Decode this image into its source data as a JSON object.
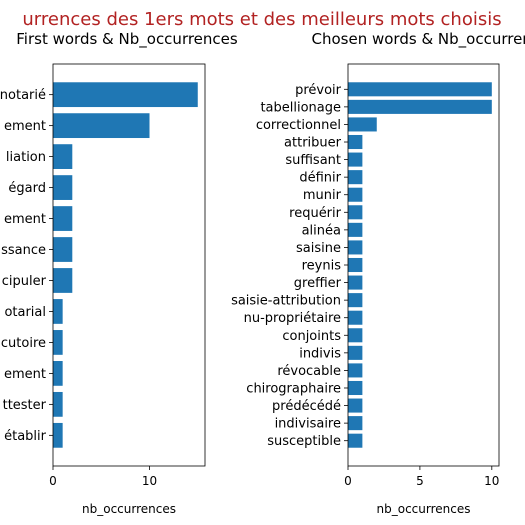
{
  "figure": {
    "suptitle": "urrences des 1ers mots et des meilleurs mots choisis",
    "suptitle_color": "#b22222",
    "bar_color": "#1f77b4"
  },
  "chart_data": [
    {
      "type": "bar",
      "orientation": "horizontal",
      "title": "First words & Nb_occurrences",
      "xlabel": "nb_occurrences",
      "ylabel": "",
      "xlim": [
        0,
        15.75
      ],
      "xticks": [
        0,
        10
      ],
      "categories": [
        "notarié",
        "ement",
        "liation",
        "égard",
        "ement",
        "ssance",
        "cipuler",
        "otarial",
        "cutoire",
        "ement",
        "ttester",
        "établir"
      ],
      "values": [
        15,
        10,
        2,
        2,
        2,
        2,
        2,
        1,
        1,
        1,
        1,
        1
      ]
    },
    {
      "type": "bar",
      "orientation": "horizontal",
      "title": "Chosen words & Nb_occurrer",
      "xlabel": "nb_occurrences",
      "ylabel": "",
      "xlim": [
        0,
        10.5
      ],
      "xticks": [
        0,
        5,
        10
      ],
      "categories": [
        "prévoir",
        "tabellionage",
        "correctionnel",
        "attribuer",
        "suffisant",
        "définir",
        "munir",
        "requérir",
        "alinéa",
        "saisine",
        "reynis",
        "greffier",
        "saisie-attribution",
        "nu-propriétaire",
        "conjoints",
        "indivis",
        "révocable",
        "chirographaire",
        "prédécédé",
        "indivisaire",
        "susceptible"
      ],
      "values": [
        10,
        10,
        2,
        1,
        1,
        1,
        1,
        1,
        1,
        1,
        1,
        1,
        1,
        1,
        1,
        1,
        1,
        1,
        1,
        1,
        1
      ]
    }
  ]
}
